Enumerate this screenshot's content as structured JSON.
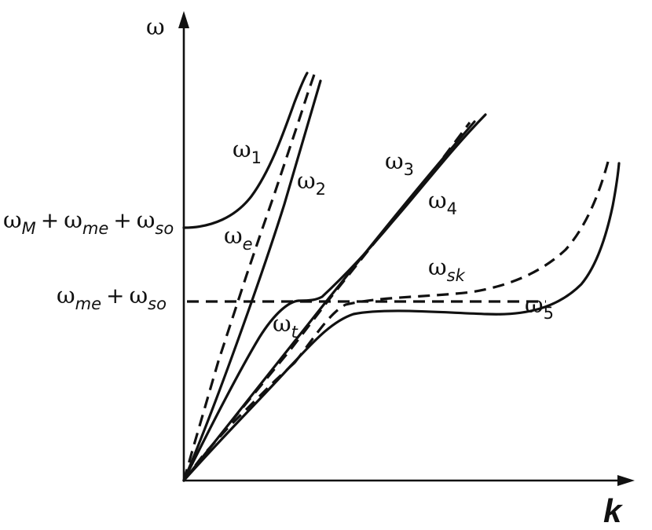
{
  "axes": {
    "y_label": "ω",
    "x_label": "k"
  },
  "levels": {
    "upper": {
      "sym": "ω",
      "terms": [
        [
          "M",
          "+"
        ],
        [
          "me",
          "+"
        ],
        [
          "so",
          ""
        ]
      ]
    },
    "lower": {
      "sym": "ω",
      "terms": [
        [
          "me",
          "+"
        ],
        [
          "so",
          ""
        ]
      ]
    }
  },
  "curve_labels": {
    "w1": {
      "sym": "ω",
      "sub": "1"
    },
    "w2": {
      "sym": "ω",
      "sub": "2"
    },
    "we": {
      "sym": "ω",
      "sub": "e"
    },
    "w3": {
      "sym": "ω",
      "sub": "3"
    },
    "w4": {
      "sym": "ω",
      "sub": "4"
    },
    "wsk": {
      "sym": "ω",
      "sub": "sk"
    },
    "wt": {
      "sym": "ω",
      "sub": "t"
    },
    "w5": {
      "sym": "ω",
      "sub": "5"
    }
  }
}
